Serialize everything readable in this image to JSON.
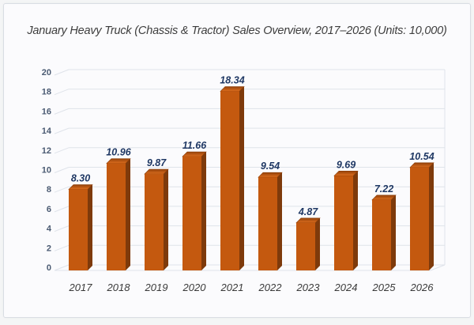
{
  "card": {
    "title": "January Heavy Truck (Chassis & Tractor) Sales Overview, 2017–2026 (Units: 10,000)"
  },
  "chart_data": {
    "type": "bar",
    "style": "3d",
    "title": "January Heavy Truck (Chassis & Tractor) Sales Overview, 2017–2026 (Units: 10,000)",
    "categories": [
      "2017",
      "2018",
      "2019",
      "2020",
      "2021",
      "2022",
      "2023",
      "2024",
      "2025",
      "2026"
    ],
    "values": [
      8.3,
      10.96,
      9.87,
      11.66,
      18.34,
      9.54,
      4.87,
      9.69,
      7.22,
      10.54
    ],
    "value_labels": [
      "8.30",
      "10.96",
      "9.87",
      "11.66",
      "18.34",
      "9.54",
      "4.87",
      "9.69",
      "7.22",
      "10.54"
    ],
    "xlabel": "",
    "ylabel": "",
    "ylim": [
      0,
      20
    ],
    "ytick_step": 2,
    "grid": true,
    "legend_position": "none",
    "colors": {
      "bar_front": "#c4590f",
      "bar_top_light": "#de6e1e",
      "bar_top_dark": "#94420a",
      "bar_top_edge": "#8a3c08",
      "bar_side": "#7e3a0b",
      "gridline": "#dfe3ea",
      "value_label": "#1f3864",
      "y_axis_label": "#4a5a72",
      "x_axis_label": "#3a3a3a",
      "title_text": "#3d3d3d",
      "card_border": "#d9dde3",
      "card_background": "#fbfbfd"
    }
  }
}
